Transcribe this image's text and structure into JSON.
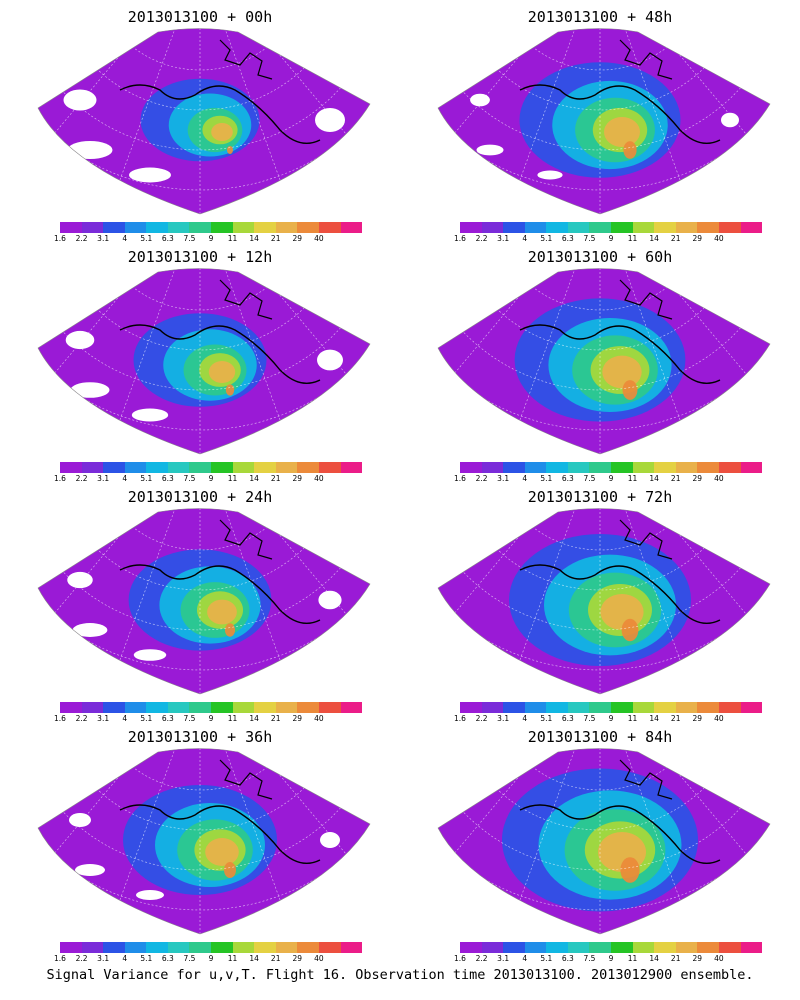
{
  "panels": [
    {
      "title": "2013013100 + 00h",
      "intensity": 0.25
    },
    {
      "title": "2013013100 + 48h",
      "intensity": 0.55
    },
    {
      "title": "2013013100 + 12h",
      "intensity": 0.35
    },
    {
      "title": "2013013100 + 60h",
      "intensity": 0.62
    },
    {
      "title": "2013013100 + 24h",
      "intensity": 0.42
    },
    {
      "title": "2013013100 + 72h",
      "intensity": 0.7
    },
    {
      "title": "2013013100 + 36h",
      "intensity": 0.5
    },
    {
      "title": "2013013100 + 84h",
      "intensity": 0.8
    }
  ],
  "colorbar": {
    "labels": [
      "1.6",
      "2.2",
      "3.1",
      "4",
      "5.1",
      "6.3",
      "7.5",
      "9",
      "11",
      "14",
      "21",
      "29",
      "40"
    ],
    "colors": [
      "#9a1ad6",
      "#7a2bd9",
      "#2b53e6",
      "#1f8de9",
      "#11b7e3",
      "#27c8c0",
      "#2ec98c",
      "#25c425",
      "#a8d83a",
      "#e4d143",
      "#e9b14a",
      "#ec8a3a",
      "#ec4f3f",
      "#eb1c88"
    ]
  },
  "footer": "Signal Variance for u,v,T. Flight 16. Observation time 2013013100. 2013012900 ensemble."
}
